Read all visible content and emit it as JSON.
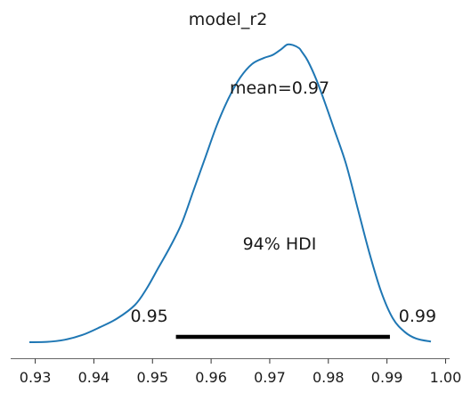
{
  "chart_data": {
    "type": "line",
    "title": "model_r2",
    "xlabel": "",
    "ylabel": "",
    "xlim": [
      0.927,
      1.002
    ],
    "ylim": [
      0,
      1
    ],
    "grid": false,
    "legend": "none",
    "x_ticks": [
      0.93,
      0.94,
      0.95,
      0.96,
      0.97,
      0.98,
      0.99,
      1.0
    ],
    "x_tick_labels": [
      "0.93",
      "0.94",
      "0.95",
      "0.96",
      "0.97",
      "0.98",
      "0.99",
      "1.00"
    ],
    "series": [
      {
        "color": "#1f77b4",
        "x": [
          0.929,
          0.932,
          0.935,
          0.938,
          0.941,
          0.944,
          0.947,
          0.949,
          0.951,
          0.953,
          0.955,
          0.957,
          0.959,
          0.961,
          0.963,
          0.965,
          0.967,
          0.969,
          0.9705,
          0.972,
          0.973,
          0.974,
          0.975,
          0.9755,
          0.9765,
          0.978,
          0.9795,
          0.981,
          0.983,
          0.985,
          0.987,
          0.989,
          0.991,
          0.993,
          0.995,
          0.9975
        ],
        "y": [
          0.0,
          0.001,
          0.008,
          0.024,
          0.05,
          0.08,
          0.125,
          0.18,
          0.25,
          0.32,
          0.4,
          0.51,
          0.62,
          0.73,
          0.82,
          0.89,
          0.935,
          0.955,
          0.965,
          0.985,
          1.0,
          0.998,
          0.988,
          0.975,
          0.945,
          0.88,
          0.8,
          0.715,
          0.6,
          0.45,
          0.3,
          0.17,
          0.08,
          0.035,
          0.012,
          0.002
        ]
      }
    ],
    "annotations": {
      "mean_label": "mean=0.97",
      "hdi_label": "94% HDI",
      "hdi_low": 0.954,
      "hdi_high": 0.9905,
      "hdi_low_label": "0.95",
      "hdi_high_label": "0.99"
    }
  }
}
